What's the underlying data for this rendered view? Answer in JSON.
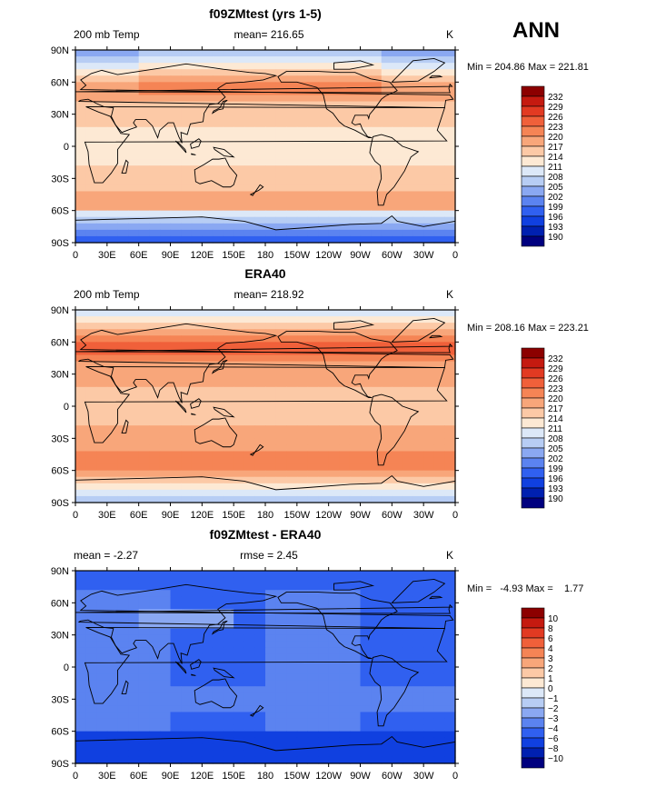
{
  "season": "ANN",
  "colors": {
    "abs_scale": [
      "#00007f",
      "#0020b0",
      "#1040e0",
      "#3060f0",
      "#5b83f0",
      "#8aa8f2",
      "#b7cdf4",
      "#dce8f8",
      "#fde9d4",
      "#fcc9a6",
      "#f8a67a",
      "#f58455",
      "#f0603a",
      "#e23a22",
      "#c51a10",
      "#8c0000"
    ],
    "diff_scale": [
      "#00007f",
      "#0020b0",
      "#1040e0",
      "#3060f0",
      "#5b83f0",
      "#8aa8f2",
      "#b7cdf4",
      "#dce8f8",
      "#fde9d4",
      "#fcc9a6",
      "#f8a67a",
      "#f58455",
      "#f0603a",
      "#e23a22",
      "#c51a10",
      "#8c0000"
    ],
    "coast": "#000000"
  },
  "x_ticks": [
    "0",
    "30E",
    "60E",
    "90E",
    "120E",
    "150E",
    "180",
    "150W",
    "120W",
    "90W",
    "60W",
    "30W",
    "0"
  ],
  "y_ticks": [
    "90N",
    "60N",
    "30N",
    "0",
    "30S",
    "60S",
    "90S"
  ],
  "panels": [
    {
      "id": "model",
      "title": "f09ZMtest (yrs 1-5)",
      "left_label": "200 mb Temp",
      "center_label": "mean= 216.65",
      "right_label": "K",
      "minmax": "Min = 204.86 Max = 221.81",
      "legend": [
        "232",
        "229",
        "226",
        "223",
        "220",
        "217",
        "214",
        "211",
        "208",
        "205",
        "202",
        "199",
        "196",
        "193",
        "190"
      ],
      "palette": "abs_scale",
      "base_level": 10
    },
    {
      "id": "obs",
      "title": "ERA40",
      "left_label": "200 mb Temp",
      "center_label": "mean= 218.92",
      "right_label": "K",
      "minmax": "Min = 208.16 Max = 223.21",
      "legend": [
        "232",
        "229",
        "226",
        "223",
        "220",
        "217",
        "214",
        "211",
        "208",
        "205",
        "202",
        "199",
        "196",
        "193",
        "190"
      ],
      "palette": "abs_scale",
      "base_level": 10
    },
    {
      "id": "diff",
      "title": "f09ZMtest - ERA40",
      "left_label": "mean =   -2.27",
      "center_label": "rmse =    2.45",
      "right_label": "K",
      "minmax": "Min =   -4.93 Max =    1.77",
      "legend": [
        "10",
        "8",
        "6",
        "4",
        "3",
        "2",
        "1",
        "0",
        "−1",
        "−2",
        "−3",
        "−4",
        "−6",
        "−8",
        "−10"
      ],
      "palette": "diff_scale",
      "base_level": 5
    }
  ]
}
